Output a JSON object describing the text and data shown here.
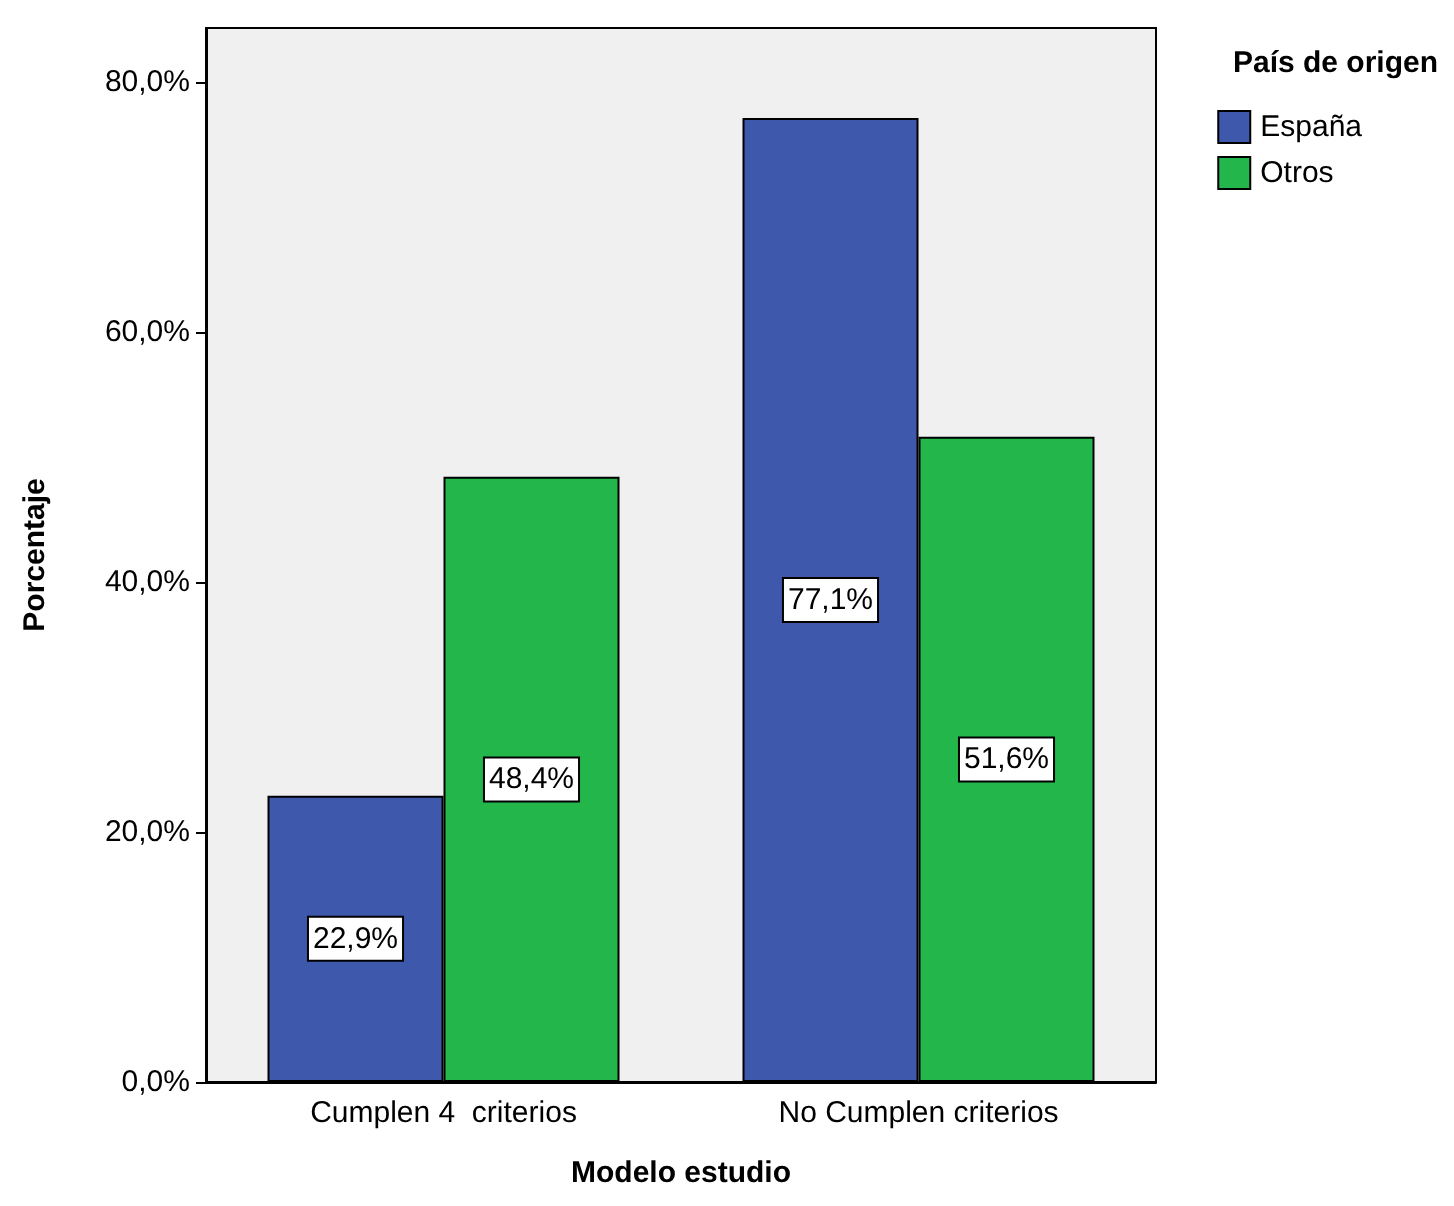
{
  "chart_data": {
    "type": "bar",
    "xlabel": "Modelo estudio",
    "ylabel": "Porcentaje",
    "legend_title": "País de origen",
    "categories": [
      "Cumplen 4  criterios",
      "No Cumplen criterios"
    ],
    "series": [
      {
        "name": "España",
        "color": "#3e58ac",
        "values": [
          22.9,
          77.1
        ],
        "value_labels": [
          "22,9%",
          "77,1%"
        ]
      },
      {
        "name": "Otros",
        "color": "#23b64b",
        "values": [
          48.4,
          51.6
        ],
        "value_labels": [
          "48,4%",
          "51,6%"
        ]
      }
    ],
    "ylim": [
      0,
      84.3
    ],
    "yticks": [
      {
        "value": 0,
        "label": "0,0%"
      },
      {
        "value": 20,
        "label": "20,0%"
      },
      {
        "value": 40,
        "label": "40,0%"
      },
      {
        "value": 60,
        "label": "60,0%"
      },
      {
        "value": 80,
        "label": "80,0%"
      }
    ],
    "grid": false,
    "legend": "top right"
  }
}
